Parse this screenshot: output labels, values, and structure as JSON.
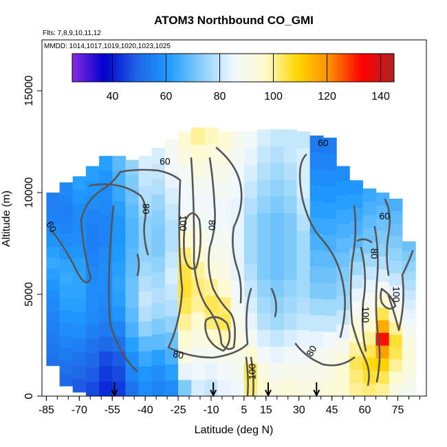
{
  "chart_data": {
    "type": "heatmap",
    "title": "ATOM3 Northbound CO_GMI",
    "subtitle_flights": "Flts: 7,8,9,10,11,12",
    "subtitle_dates": "MMDD: 1014,1017,1019,1020,1023,1025",
    "xlabel": "Latitude (deg N)",
    "ylabel": "Altitude (m)",
    "xlim": [
      -87,
      88
    ],
    "ylim": [
      0,
      17500
    ],
    "x_ticks": [
      -85,
      -70,
      -55,
      -40,
      -25,
      -10,
      5,
      15,
      30,
      45,
      60,
      75
    ],
    "x_tick_labels": [
      "-85",
      "-70",
      "-55",
      "-40",
      "-25",
      "-10",
      "5",
      "15",
      "30",
      "45",
      "60",
      "75"
    ],
    "y_ticks": [
      0,
      5000,
      10000,
      15000
    ],
    "y_tick_labels": [
      "0",
      "5000",
      "10000",
      "15000"
    ],
    "colorbar": {
      "range": [
        25,
        145
      ],
      "ticks": [
        40,
        60,
        80,
        100,
        120,
        140
      ],
      "tick_labels": [
        "40",
        "60",
        "80",
        "100",
        "120",
        "140"
      ],
      "colors": [
        "#8a2be2",
        "#0000cd",
        "#1e64e6",
        "#1e9bff",
        "#87cefa",
        "#f0f8ff",
        "#fffacd",
        "#ffd700",
        "#ff8c00",
        "#ff0000",
        "#b22222"
      ]
    },
    "contour_levels": [
      60,
      80,
      100
    ],
    "contour_labels": [
      {
        "text": "60",
        "x": -83,
        "y": 8300,
        "rotate": 60
      },
      {
        "text": "60",
        "x": -31,
        "y": 11500,
        "rotate": 0
      },
      {
        "text": "80",
        "x": -40,
        "y": 9200,
        "rotate": 90
      },
      {
        "text": "100",
        "x": -23,
        "y": 8500,
        "rotate": 90
      },
      {
        "text": "80",
        "x": -10,
        "y": 8400,
        "rotate": 90
      },
      {
        "text": "80",
        "x": -25,
        "y": 2000,
        "rotate": 10
      },
      {
        "text": "100",
        "x": 9,
        "y": 1200,
        "rotate": -90
      },
      {
        "text": "80",
        "x": 36,
        "y": 2200,
        "rotate": -60
      },
      {
        "text": "60",
        "x": 41,
        "y": 12400,
        "rotate": 0
      },
      {
        "text": "60",
        "x": 69,
        "y": 8800,
        "rotate": 0
      },
      {
        "text": "80",
        "x": 64,
        "y": 7000,
        "rotate": 90
      },
      {
        "text": "100",
        "x": 60,
        "y": 4000,
        "rotate": 90
      },
      {
        "text": "100",
        "x": 74,
        "y": 5000,
        "rotate": 90
      }
    ],
    "flight_markers_lat": [
      -54,
      -9,
      16,
      38
    ],
    "columns": [
      {
        "lat": -82,
        "top": 10000,
        "bottom": 1500,
        "v": [
          52,
          53,
          54,
          55,
          56,
          57,
          58,
          60,
          62,
          64,
          62,
          60,
          58,
          56,
          55,
          55
        ]
      },
      {
        "lat": -76,
        "top": 10500,
        "bottom": 500,
        "v": [
          50,
          52,
          54,
          56,
          58,
          60,
          62,
          63,
          64,
          63,
          60,
          58,
          56,
          55,
          56,
          57
        ]
      },
      {
        "lat": -70,
        "top": 10800,
        "bottom": 200,
        "v": [
          48,
          50,
          52,
          55,
          58,
          60,
          62,
          63,
          63,
          62,
          60,
          58,
          57,
          58,
          60,
          62
        ]
      },
      {
        "lat": -64,
        "top": 11300,
        "bottom": 0,
        "v": [
          46,
          48,
          50,
          52,
          55,
          57,
          58,
          58,
          57,
          56,
          55,
          55,
          56,
          58,
          60,
          62
        ]
      },
      {
        "lat": -58,
        "top": 11800,
        "bottom": 0,
        "v": [
          42,
          44,
          46,
          50,
          54,
          56,
          57,
          58,
          58,
          57,
          56,
          56,
          57,
          58,
          60,
          62
        ]
      },
      {
        "lat": -52,
        "top": 11800,
        "bottom": 0,
        "v": [
          44,
          46,
          48,
          52,
          56,
          60,
          62,
          63,
          62,
          61,
          60,
          60,
          62,
          64,
          66,
          68
        ]
      },
      {
        "lat": -46,
        "top": 11600,
        "bottom": 0,
        "v": [
          52,
          56,
          58,
          62,
          66,
          68,
          70,
          70,
          69,
          68,
          67,
          67,
          68,
          70,
          72,
          74
        ]
      },
      {
        "lat": -40,
        "top": 11800,
        "bottom": 0,
        "v": [
          58,
          60,
          64,
          68,
          74,
          78,
          80,
          78,
          76,
          74,
          74,
          74,
          76,
          78,
          80,
          82
        ]
      },
      {
        "lat": -34,
        "top": 12200,
        "bottom": 0,
        "v": [
          56,
          58,
          62,
          68,
          72,
          76,
          78,
          76,
          74,
          72,
          72,
          73,
          75,
          78,
          80,
          82
        ]
      },
      {
        "lat": -28,
        "top": 12600,
        "bottom": 0,
        "v": [
          58,
          62,
          66,
          70,
          74,
          78,
          80,
          82,
          80,
          78,
          78,
          80,
          82,
          84,
          86,
          88
        ]
      },
      {
        "lat": -22,
        "top": 13000,
        "bottom": 0,
        "v": [
          72,
          84,
          92,
          96,
          100,
          104,
          106,
          105,
          102,
          96,
          90,
          86,
          86,
          88,
          92,
          96
        ]
      },
      {
        "lat": -16,
        "top": 13200,
        "bottom": 0,
        "v": [
          82,
          86,
          88,
          92,
          96,
          100,
          102,
          100,
          96,
          92,
          88,
          86,
          88,
          92,
          96,
          100
        ]
      },
      {
        "lat": -10,
        "top": 13200,
        "bottom": 0,
        "v": [
          80,
          84,
          88,
          96,
          102,
          104,
          100,
          94,
          90,
          88,
          86,
          86,
          87,
          90,
          94,
          98
        ]
      },
      {
        "lat": -4,
        "top": 13000,
        "bottom": 0,
        "v": [
          84,
          86,
          90,
          98,
          104,
          102,
          96,
          92,
          90,
          88,
          86,
          86,
          88,
          90,
          92,
          96
        ]
      },
      {
        "lat": 2,
        "top": 13000,
        "bottom": 0,
        "v": [
          86,
          88,
          90,
          92,
          90,
          88,
          86,
          84,
          84,
          84,
          84,
          84,
          85,
          86,
          88,
          90
        ]
      },
      {
        "lat": 8,
        "top": 13000,
        "bottom": 0,
        "v": [
          102,
          104,
          96,
          88,
          84,
          82,
          80,
          78,
          76,
          76,
          76,
          78,
          80,
          82,
          84,
          86
        ]
      },
      {
        "lat": 14,
        "top": 13100,
        "bottom": 0,
        "v": [
          96,
          92,
          86,
          82,
          78,
          76,
          74,
          72,
          72,
          72,
          72,
          74,
          76,
          78,
          80,
          82
        ]
      },
      {
        "lat": 20,
        "top": 13100,
        "bottom": 0,
        "v": [
          92,
          88,
          84,
          80,
          76,
          74,
          72,
          70,
          70,
          70,
          70,
          72,
          74,
          76,
          78,
          80
        ]
      },
      {
        "lat": 26,
        "top": 13100,
        "bottom": 0,
        "v": [
          94,
          90,
          86,
          82,
          78,
          76,
          74,
          72,
          72,
          72,
          72,
          74,
          76,
          78,
          80,
          80
        ]
      },
      {
        "lat": 32,
        "top": 13000,
        "bottom": 0,
        "v": [
          92,
          90,
          86,
          84,
          80,
          78,
          76,
          76,
          76,
          76,
          78,
          80,
          82,
          82,
          82,
          80
        ]
      },
      {
        "lat": 38,
        "top": 12800,
        "bottom": 0,
        "v": [
          92,
          90,
          88,
          84,
          80,
          76,
          72,
          70,
          68,
          66,
          64,
          62,
          60,
          58,
          56,
          54
        ]
      },
      {
        "lat": 44,
        "top": 12700,
        "bottom": 0,
        "v": [
          94,
          92,
          90,
          86,
          80,
          76,
          72,
          70,
          68,
          66,
          64,
          62,
          60,
          58,
          56,
          54
        ]
      },
      {
        "lat": 50,
        "top": 11300,
        "bottom": 0,
        "v": [
          96,
          96,
          94,
          90,
          84,
          80,
          76,
          74,
          72,
          70,
          68,
          66,
          64,
          62,
          60,
          58
        ]
      },
      {
        "lat": 56,
        "top": 10600,
        "bottom": 0,
        "v": [
          100,
          102,
          104,
          100,
          96,
          92,
          88,
          84,
          80,
          76,
          72,
          68,
          66,
          64,
          62,
          60
        ]
      },
      {
        "lat": 62,
        "top": 10200,
        "bottom": 0,
        "v": [
          102,
          106,
          108,
          104,
          100,
          96,
          92,
          88,
          84,
          80,
          76,
          72,
          70,
          68,
          66,
          64
        ]
      },
      {
        "lat": 68,
        "top": 10000,
        "bottom": 0,
        "v": [
          100,
          104,
          110,
          118,
          132,
          116,
          104,
          96,
          88,
          82,
          78,
          74,
          72,
          70,
          68,
          66
        ]
      },
      {
        "lat": 74,
        "top": 9700,
        "bottom": 0,
        "v": [
          92,
          96,
          100,
          104,
          106,
          100,
          94,
          88,
          84,
          80,
          76,
          74,
          72,
          70,
          68,
          66
        ]
      },
      {
        "lat": 80,
        "top": 7600,
        "bottom": 0,
        "v": [
          88,
          90,
          92,
          94,
          94,
          92,
          90,
          86,
          84,
          82,
          80,
          78,
          76,
          74,
          72,
          70
        ]
      }
    ]
  }
}
